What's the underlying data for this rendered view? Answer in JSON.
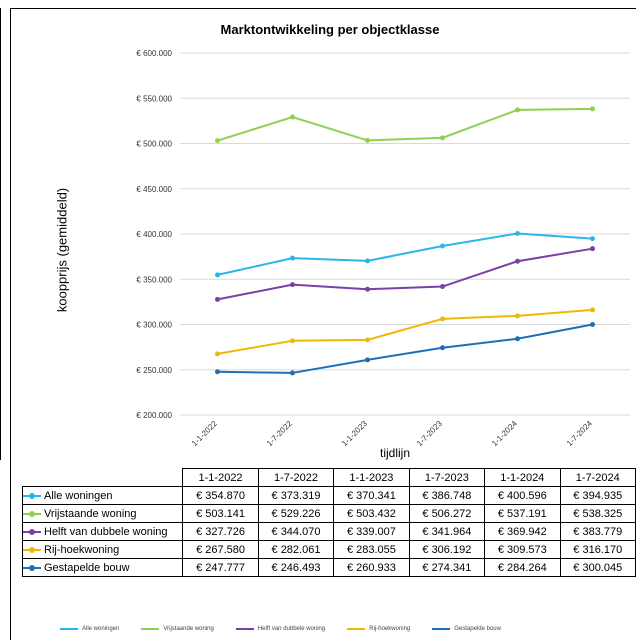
{
  "chart_data": {
    "type": "line",
    "title": "Marktontwikkeling per objectklasse",
    "xlabel": "tijdlijn",
    "ylabel": "koopprijs (gemiddeld)",
    "categories": [
      "1-1-2022",
      "1-7-2022",
      "1-1-2023",
      "1-7-2023",
      "1-1-2024",
      "1-7-2024"
    ],
    "ylim": [
      200000,
      600000
    ],
    "yticks": [
      200000,
      250000,
      300000,
      350000,
      400000,
      450000,
      500000,
      550000,
      600000
    ],
    "ytick_labels": [
      "€ 200.000",
      "€ 250.000",
      "€ 300.000",
      "€ 350.000",
      "€ 400.000",
      "€ 450.000",
      "€ 500.000",
      "€ 550.000",
      "€ 600.000"
    ],
    "grid": true,
    "legend": "bottom",
    "series": [
      {
        "name": "Alle woningen",
        "color": "#29b6e8",
        "values": [
          354870,
          373319,
          370341,
          386748,
          400596,
          394935
        ],
        "labels": [
          "€ 354.870",
          "€ 373.319",
          "€ 370.341",
          "€ 386.748",
          "€ 400.596",
          "€ 394.935"
        ]
      },
      {
        "name": "Vrijstaande woning",
        "color": "#8fd14f",
        "values": [
          503141,
          529226,
          503432,
          506272,
          537191,
          538325
        ],
        "labels": [
          "€ 503.141",
          "€ 529.226",
          "€ 503.432",
          "€ 506.272",
          "€ 537.191",
          "€ 538.325"
        ]
      },
      {
        "name": "Helft van dubbele woning",
        "color": "#7b3fa8",
        "values": [
          327726,
          344070,
          339007,
          341964,
          369942,
          383779
        ],
        "labels": [
          "€ 327.726",
          "€ 344.070",
          "€ 339.007",
          "€ 341.964",
          "€ 369.942",
          "€ 383.779"
        ]
      },
      {
        "name": "Rij-hoekwoning",
        "color": "#f2b705",
        "values": [
          267580,
          282061,
          283055,
          306192,
          309573,
          316170
        ],
        "labels": [
          "€ 267.580",
          "€ 282.061",
          "€ 283.055",
          "€ 306.192",
          "€ 309.573",
          "€ 316.170"
        ]
      },
      {
        "name": "Gestapelde bouw",
        "color": "#1f6fb5",
        "values": [
          247777,
          246493,
          260933,
          274341,
          284264,
          300045
        ],
        "labels": [
          "€ 247.777",
          "€ 246.493",
          "€ 260.933",
          "€ 274.341",
          "€ 284.264",
          "€ 300.045"
        ]
      }
    ]
  }
}
